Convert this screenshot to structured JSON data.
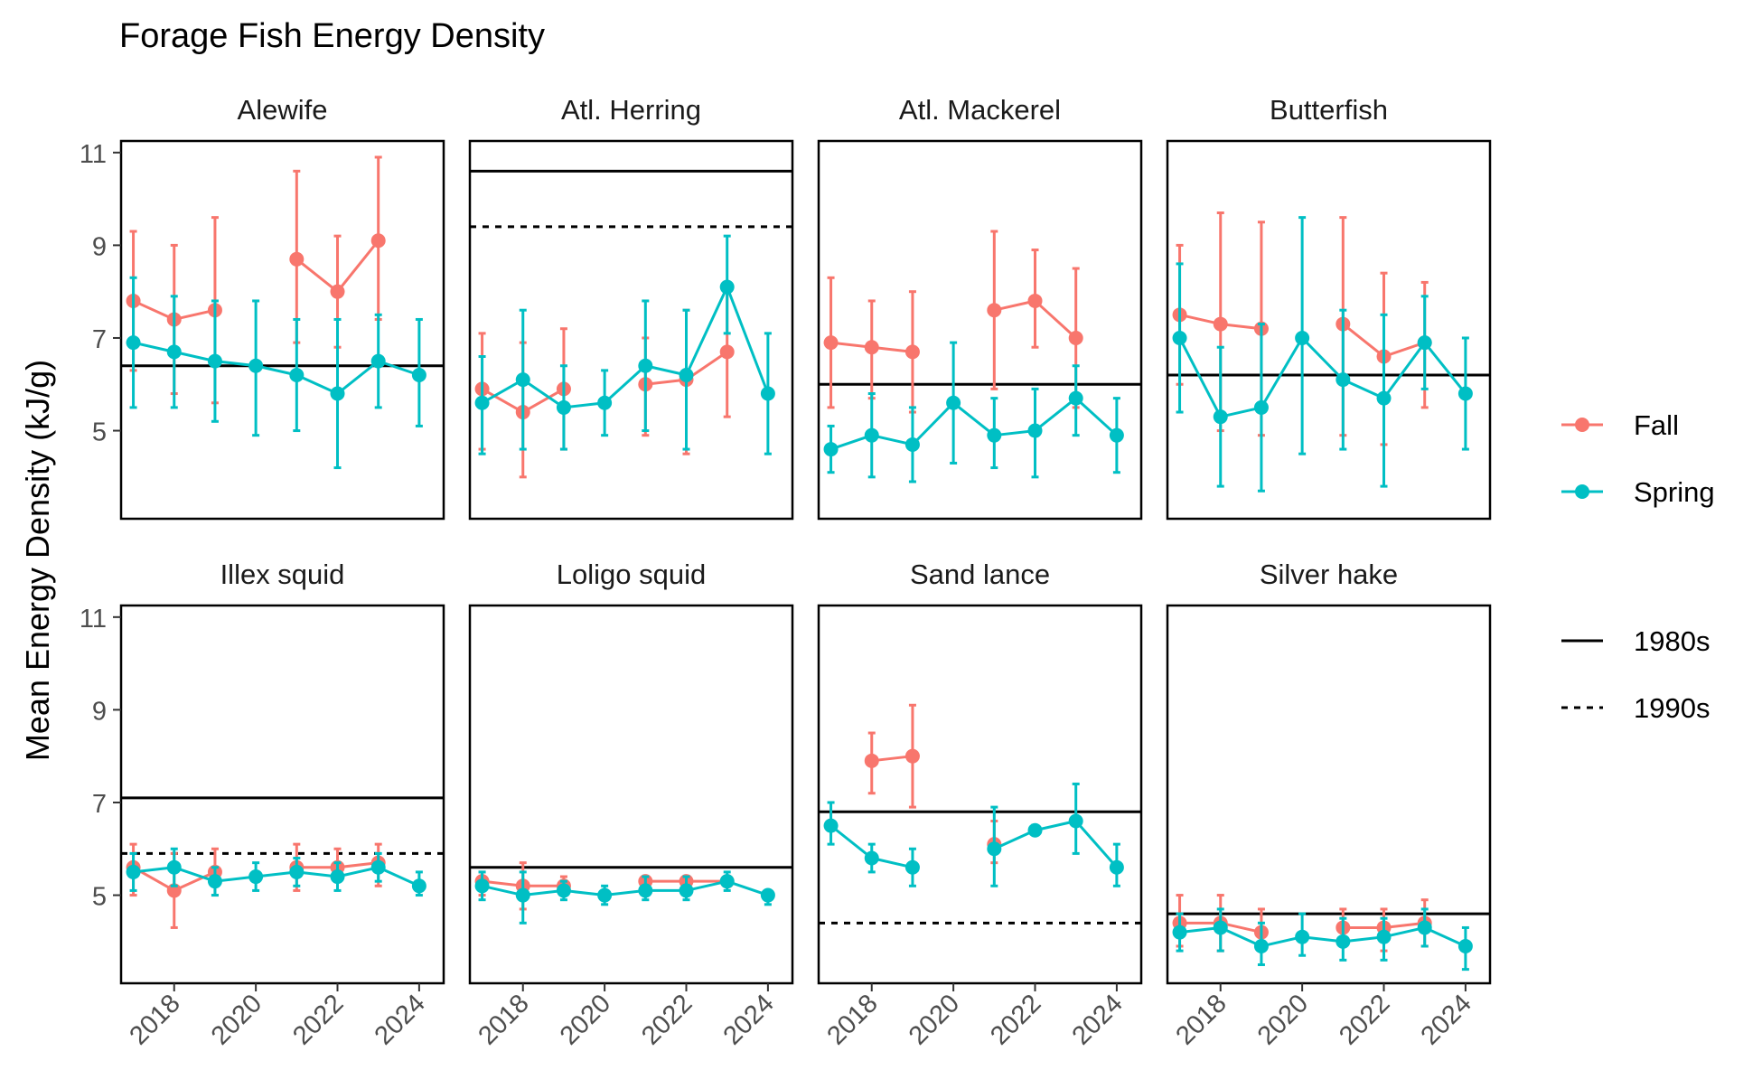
{
  "chart_data": {
    "type": "line",
    "title": "Forage Fish Energy Density",
    "ylabel": "Mean Energy Density (kJ/g)",
    "xlabel": "",
    "x_ticks": [
      2018,
      2020,
      2022,
      2024
    ],
    "y_ticks": [
      5,
      7,
      9,
      11
    ],
    "xlim": [
      2016.7,
      2024.6
    ],
    "ylim": [
      3.1,
      11.25
    ],
    "grid": false,
    "legend": {
      "placement": "right",
      "season": [
        {
          "name": "Fall",
          "color": "#F8766D"
        },
        {
          "name": "Spring",
          "color": "#00BFC4"
        }
      ],
      "reference": [
        {
          "name": "1980s",
          "linestyle": "solid"
        },
        {
          "name": "1990s",
          "linestyle": "dashed"
        }
      ]
    },
    "panels": [
      {
        "title": "Alewife",
        "ref_1980s": 6.4,
        "ref_1990s": null,
        "series": [
          {
            "name": "Fall",
            "points": [
              {
                "x": 2017,
                "y": 7.8,
                "lo": 6.3,
                "hi": 9.3
              },
              {
                "x": 2018,
                "y": 7.4,
                "lo": 5.8,
                "hi": 9.0
              },
              {
                "x": 2019,
                "y": 7.6,
                "lo": 5.6,
                "hi": 9.6
              },
              {
                "x": 2021,
                "y": 8.7,
                "lo": 6.9,
                "hi": 10.6
              },
              {
                "x": 2022,
                "y": 8.0,
                "lo": 6.8,
                "hi": 9.2
              },
              {
                "x": 2023,
                "y": 9.1,
                "lo": 7.4,
                "hi": 10.9
              }
            ]
          },
          {
            "name": "Spring",
            "points": [
              {
                "x": 2017,
                "y": 6.9,
                "lo": 5.5,
                "hi": 8.3
              },
              {
                "x": 2018,
                "y": 6.7,
                "lo": 5.5,
                "hi": 7.9
              },
              {
                "x": 2019,
                "y": 6.5,
                "lo": 5.2,
                "hi": 7.8
              },
              {
                "x": 2020,
                "y": 6.4,
                "lo": 4.9,
                "hi": 7.8
              },
              {
                "x": 2021,
                "y": 6.2,
                "lo": 5.0,
                "hi": 7.4
              },
              {
                "x": 2022,
                "y": 5.8,
                "lo": 4.2,
                "hi": 7.4
              },
              {
                "x": 2023,
                "y": 6.5,
                "lo": 5.5,
                "hi": 7.5
              },
              {
                "x": 2024,
                "y": 6.2,
                "lo": 5.1,
                "hi": 7.4
              }
            ]
          }
        ]
      },
      {
        "title": "Atl. Herring",
        "ref_1980s": 10.6,
        "ref_1990s": 9.4,
        "series": [
          {
            "name": "Fall",
            "points": [
              {
                "x": 2017,
                "y": 5.9,
                "lo": 4.6,
                "hi": 7.1
              },
              {
                "x": 2018,
                "y": 5.4,
                "lo": 4.0,
                "hi": 6.9
              },
              {
                "x": 2019,
                "y": 5.9,
                "lo": 4.6,
                "hi": 7.2
              },
              {
                "x": 2021,
                "y": 6.0,
                "lo": 4.9,
                "hi": 7.0
              },
              {
                "x": 2022,
                "y": 6.1,
                "lo": 4.5,
                "hi": 7.6
              },
              {
                "x": 2023,
                "y": 6.7,
                "lo": 5.3,
                "hi": 8.1
              }
            ]
          },
          {
            "name": "Spring",
            "points": [
              {
                "x": 2017,
                "y": 5.6,
                "lo": 4.5,
                "hi": 6.6
              },
              {
                "x": 2018,
                "y": 6.1,
                "lo": 4.6,
                "hi": 7.6
              },
              {
                "x": 2019,
                "y": 5.5,
                "lo": 4.6,
                "hi": 6.4
              },
              {
                "x": 2020,
                "y": 5.6,
                "lo": 4.9,
                "hi": 6.3
              },
              {
                "x": 2021,
                "y": 6.4,
                "lo": 5.0,
                "hi": 7.8
              },
              {
                "x": 2022,
                "y": 6.2,
                "lo": 4.6,
                "hi": 7.6
              },
              {
                "x": 2023,
                "y": 8.1,
                "lo": 7.1,
                "hi": 9.2
              },
              {
                "x": 2024,
                "y": 5.8,
                "lo": 4.5,
                "hi": 7.1
              }
            ]
          }
        ]
      },
      {
        "title": "Atl. Mackerel",
        "ref_1980s": 6.0,
        "ref_1990s": null,
        "series": [
          {
            "name": "Fall",
            "points": [
              {
                "x": 2017,
                "y": 6.9,
                "lo": 5.5,
                "hi": 8.3
              },
              {
                "x": 2018,
                "y": 6.8,
                "lo": 5.7,
                "hi": 7.8
              },
              {
                "x": 2019,
                "y": 6.7,
                "lo": 5.4,
                "hi": 8.0
              },
              {
                "x": 2021,
                "y": 7.6,
                "lo": 5.9,
                "hi": 9.3
              },
              {
                "x": 2022,
                "y": 7.8,
                "lo": 6.8,
                "hi": 8.9
              },
              {
                "x": 2023,
                "y": 7.0,
                "lo": 5.5,
                "hi": 8.5
              }
            ]
          },
          {
            "name": "Spring",
            "points": [
              {
                "x": 2017,
                "y": 4.6,
                "lo": 4.1,
                "hi": 5.1
              },
              {
                "x": 2018,
                "y": 4.9,
                "lo": 4.0,
                "hi": 5.8
              },
              {
                "x": 2019,
                "y": 4.7,
                "lo": 3.9,
                "hi": 5.5
              },
              {
                "x": 2020,
                "y": 5.6,
                "lo": 4.3,
                "hi": 6.9
              },
              {
                "x": 2021,
                "y": 4.9,
                "lo": 4.2,
                "hi": 5.7
              },
              {
                "x": 2022,
                "y": 5.0,
                "lo": 4.0,
                "hi": 5.9
              },
              {
                "x": 2023,
                "y": 5.7,
                "lo": 4.9,
                "hi": 6.4
              },
              {
                "x": 2024,
                "y": 4.9,
                "lo": 4.1,
                "hi": 5.7
              }
            ]
          }
        ]
      },
      {
        "title": "Butterfish",
        "ref_1980s": 6.2,
        "ref_1990s": null,
        "series": [
          {
            "name": "Fall",
            "points": [
              {
                "x": 2017,
                "y": 7.5,
                "lo": 6.0,
                "hi": 9.0
              },
              {
                "x": 2018,
                "y": 7.3,
                "lo": 5.0,
                "hi": 9.7
              },
              {
                "x": 2019,
                "y": 7.2,
                "lo": 4.9,
                "hi": 9.5
              },
              {
                "x": 2021,
                "y": 7.3,
                "lo": 4.9,
                "hi": 9.6
              },
              {
                "x": 2022,
                "y": 6.6,
                "lo": 4.7,
                "hi": 8.4
              },
              {
                "x": 2023,
                "y": 6.9,
                "lo": 5.5,
                "hi": 8.2
              }
            ]
          },
          {
            "name": "Spring",
            "points": [
              {
                "x": 2017,
                "y": 7.0,
                "lo": 5.4,
                "hi": 8.6
              },
              {
                "x": 2018,
                "y": 5.3,
                "lo": 3.8,
                "hi": 6.8
              },
              {
                "x": 2019,
                "y": 5.5,
                "lo": 3.7,
                "hi": 7.3
              },
              {
                "x": 2020,
                "y": 7.0,
                "lo": 4.5,
                "hi": 9.6
              },
              {
                "x": 2021,
                "y": 6.1,
                "lo": 4.6,
                "hi": 7.6
              },
              {
                "x": 2022,
                "y": 5.7,
                "lo": 3.8,
                "hi": 7.5
              },
              {
                "x": 2023,
                "y": 6.9,
                "lo": 5.9,
                "hi": 7.9
              },
              {
                "x": 2024,
                "y": 5.8,
                "lo": 4.6,
                "hi": 7.0
              }
            ]
          }
        ]
      },
      {
        "title": "Illex squid",
        "ref_1980s": 7.1,
        "ref_1990s": 5.9,
        "series": [
          {
            "name": "Fall",
            "points": [
              {
                "x": 2017,
                "y": 5.6,
                "lo": 5.0,
                "hi": 6.1
              },
              {
                "x": 2018,
                "y": 5.1,
                "lo": 4.3,
                "hi": 5.9
              },
              {
                "x": 2019,
                "y": 5.5,
                "lo": 5.0,
                "hi": 6.0
              },
              {
                "x": 2021,
                "y": 5.6,
                "lo": 5.1,
                "hi": 6.1
              },
              {
                "x": 2022,
                "y": 5.6,
                "lo": 5.3,
                "hi": 6.0
              },
              {
                "x": 2023,
                "y": 5.7,
                "lo": 5.2,
                "hi": 6.1
              }
            ]
          },
          {
            "name": "Spring",
            "points": [
              {
                "x": 2017,
                "y": 5.5,
                "lo": 5.1,
                "hi": 5.9
              },
              {
                "x": 2018,
                "y": 5.6,
                "lo": 5.2,
                "hi": 6.0
              },
              {
                "x": 2019,
                "y": 5.3,
                "lo": 5.0,
                "hi": 5.6
              },
              {
                "x": 2020,
                "y": 5.4,
                "lo": 5.1,
                "hi": 5.7
              },
              {
                "x": 2021,
                "y": 5.5,
                "lo": 5.2,
                "hi": 5.8
              },
              {
                "x": 2022,
                "y": 5.4,
                "lo": 5.1,
                "hi": 5.7
              },
              {
                "x": 2023,
                "y": 5.6,
                "lo": 5.3,
                "hi": 5.9
              },
              {
                "x": 2024,
                "y": 5.2,
                "lo": 5.0,
                "hi": 5.5
              }
            ]
          }
        ]
      },
      {
        "title": "Loligo squid",
        "ref_1980s": 5.6,
        "ref_1990s": null,
        "series": [
          {
            "name": "Fall",
            "points": [
              {
                "x": 2017,
                "y": 5.3,
                "lo": 5.0,
                "hi": 5.5
              },
              {
                "x": 2018,
                "y": 5.2,
                "lo": 4.7,
                "hi": 5.7
              },
              {
                "x": 2019,
                "y": 5.2,
                "lo": 5.0,
                "hi": 5.4
              },
              {
                "x": 2021,
                "y": 5.3,
                "lo": 5.1,
                "hi": 5.4
              },
              {
                "x": 2022,
                "y": 5.3,
                "lo": 5.1,
                "hi": 5.4
              },
              {
                "x": 2023,
                "y": 5.3,
                "lo": 5.2,
                "hi": 5.4
              }
            ]
          },
          {
            "name": "Spring",
            "points": [
              {
                "x": 2017,
                "y": 5.2,
                "lo": 4.9,
                "hi": 5.5
              },
              {
                "x": 2018,
                "y": 5.0,
                "lo": 4.4,
                "hi": 5.5
              },
              {
                "x": 2019,
                "y": 5.1,
                "lo": 4.9,
                "hi": 5.3
              },
              {
                "x": 2020,
                "y": 5.0,
                "lo": 4.8,
                "hi": 5.2
              },
              {
                "x": 2021,
                "y": 5.1,
                "lo": 4.9,
                "hi": 5.4
              },
              {
                "x": 2022,
                "y": 5.1,
                "lo": 4.9,
                "hi": 5.4
              },
              {
                "x": 2023,
                "y": 5.3,
                "lo": 5.1,
                "hi": 5.5
              },
              {
                "x": 2024,
                "y": 5.0,
                "lo": 4.8,
                "hi": 5.1
              }
            ]
          }
        ]
      },
      {
        "title": "Sand lance",
        "ref_1980s": 6.8,
        "ref_1990s": 4.4,
        "series": [
          {
            "name": "Fall",
            "points": [
              {
                "x": 2018,
                "y": 7.9,
                "lo": 7.2,
                "hi": 8.5
              },
              {
                "x": 2019,
                "y": 8.0,
                "lo": 6.9,
                "hi": 9.1
              },
              {
                "x": 2021,
                "y": 6.1,
                "lo": 5.7,
                "hi": 6.6
              }
            ]
          },
          {
            "name": "Spring",
            "points": [
              {
                "x": 2017,
                "y": 6.5,
                "lo": 6.1,
                "hi": 7.0
              },
              {
                "x": 2018,
                "y": 5.8,
                "lo": 5.5,
                "hi": 6.1
              },
              {
                "x": 2019,
                "y": 5.6,
                "lo": 5.2,
                "hi": 6.0
              },
              {
                "x": 2021,
                "y": 6.0,
                "lo": 5.2,
                "hi": 6.9
              },
              {
                "x": 2022,
                "y": 6.4,
                "lo": 6.3,
                "hi": 6.5
              },
              {
                "x": 2023,
                "y": 6.6,
                "lo": 5.9,
                "hi": 7.4
              },
              {
                "x": 2024,
                "y": 5.6,
                "lo": 5.2,
                "hi": 6.1
              }
            ]
          }
        ]
      },
      {
        "title": "Silver hake",
        "ref_1980s": 4.6,
        "ref_1990s": null,
        "series": [
          {
            "name": "Fall",
            "points": [
              {
                "x": 2017,
                "y": 4.4,
                "lo": 3.9,
                "hi": 5.0
              },
              {
                "x": 2018,
                "y": 4.4,
                "lo": 3.8,
                "hi": 5.0
              },
              {
                "x": 2019,
                "y": 4.2,
                "lo": 3.8,
                "hi": 4.7
              },
              {
                "x": 2021,
                "y": 4.3,
                "lo": 3.9,
                "hi": 4.7
              },
              {
                "x": 2022,
                "y": 4.3,
                "lo": 3.8,
                "hi": 4.7
              },
              {
                "x": 2023,
                "y": 4.4,
                "lo": 3.9,
                "hi": 4.9
              }
            ]
          },
          {
            "name": "Spring",
            "points": [
              {
                "x": 2017,
                "y": 4.2,
                "lo": 3.8,
                "hi": 4.6
              },
              {
                "x": 2018,
                "y": 4.3,
                "lo": 3.8,
                "hi": 4.7
              },
              {
                "x": 2019,
                "y": 3.9,
                "lo": 3.5,
                "hi": 4.4
              },
              {
                "x": 2020,
                "y": 4.1,
                "lo": 3.7,
                "hi": 4.6
              },
              {
                "x": 2021,
                "y": 4.0,
                "lo": 3.6,
                "hi": 4.5
              },
              {
                "x": 2022,
                "y": 4.1,
                "lo": 3.6,
                "hi": 4.5
              },
              {
                "x": 2023,
                "y": 4.3,
                "lo": 3.9,
                "hi": 4.7
              },
              {
                "x": 2024,
                "y": 3.9,
                "lo": 3.4,
                "hi": 4.3
              }
            ]
          }
        ]
      }
    ]
  }
}
